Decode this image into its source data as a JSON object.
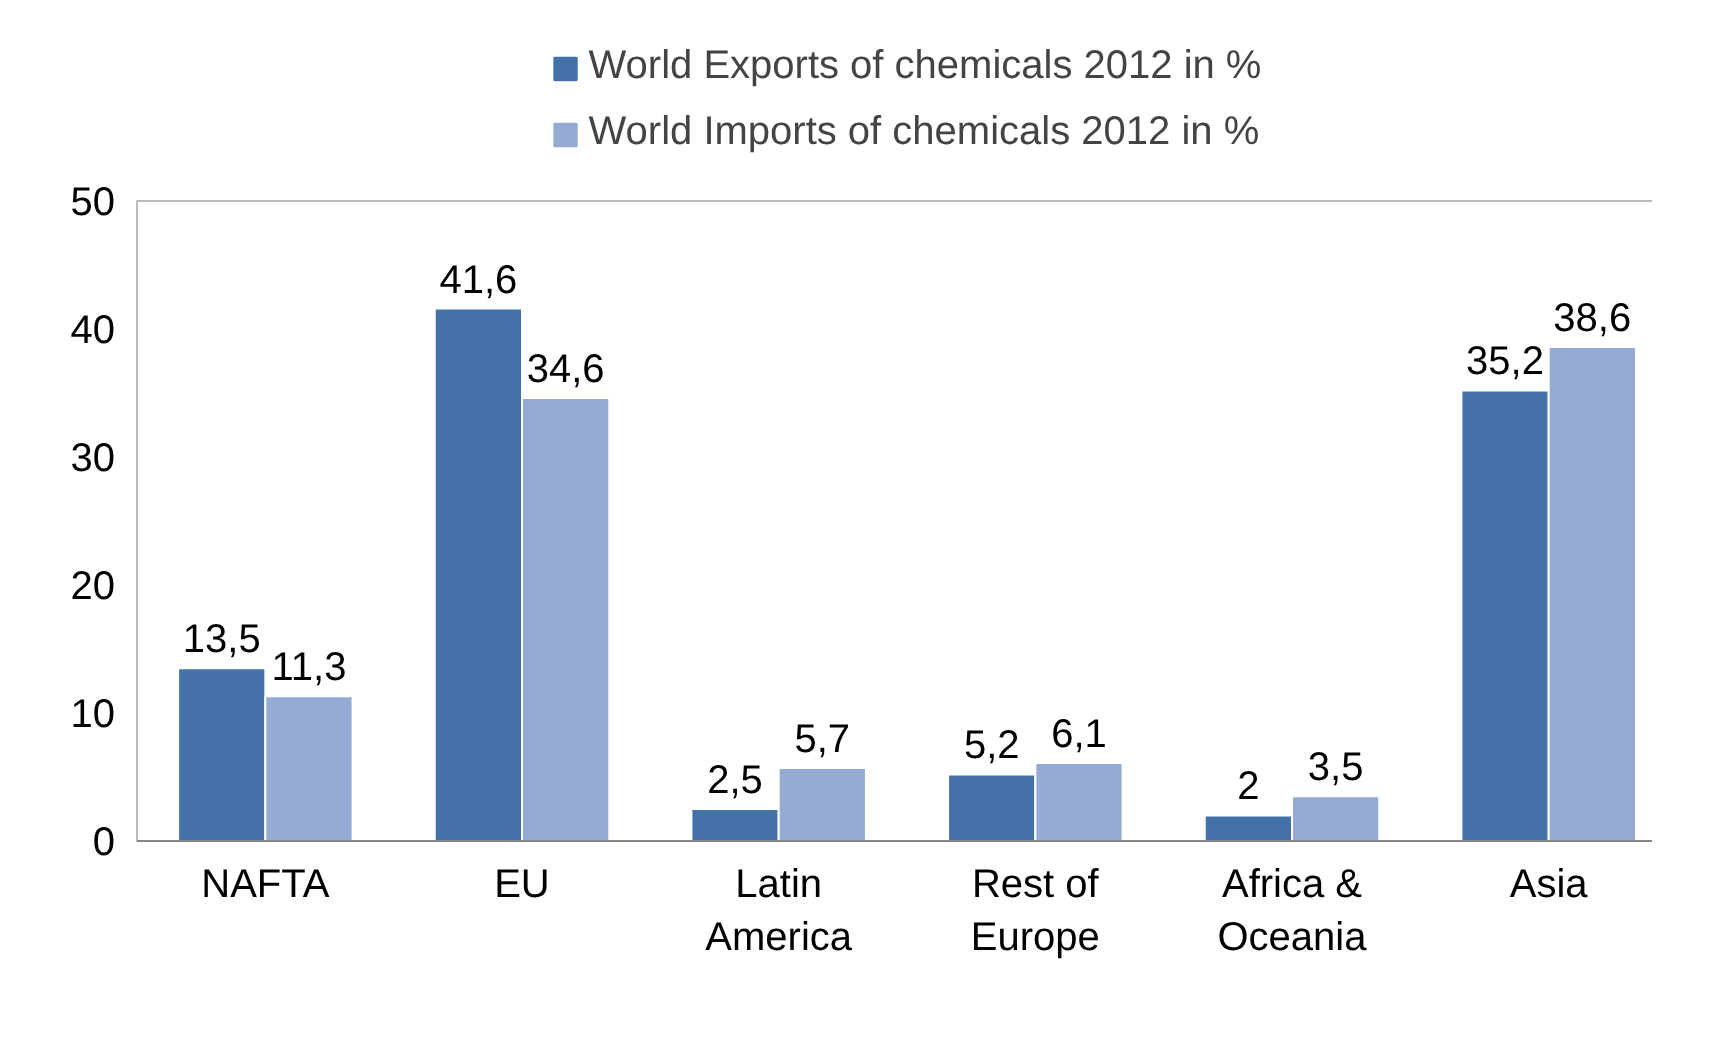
{
  "chart_data": {
    "type": "bar",
    "categories": [
      "NAFTA",
      "EU",
      "Latin\nAmerica",
      "Rest of\nEurope",
      "Africa &\nOceania",
      "Asia"
    ],
    "series": [
      {
        "name": "World Exports of chemicals 2012 in %",
        "color": "#4472a8",
        "values": [
          13.5,
          41.6,
          2.5,
          5.2,
          2,
          35.2
        ],
        "value_labels": [
          "13,5",
          "41,6",
          "2,5",
          "5,2",
          "2",
          "35,2"
        ]
      },
      {
        "name": "World Imports of chemicals 2012 in %",
        "color": "#95abd4",
        "values": [
          11.3,
          34.6,
          5.7,
          6.1,
          3.5,
          38.6
        ],
        "value_labels": [
          "11,3",
          "34,6",
          "5,7",
          "6,1",
          "3,5",
          "38,6"
        ]
      }
    ],
    "ylim": [
      0,
      50
    ],
    "yticks": [
      0,
      10,
      20,
      30,
      40,
      50
    ],
    "grid": false,
    "legend": "top"
  }
}
